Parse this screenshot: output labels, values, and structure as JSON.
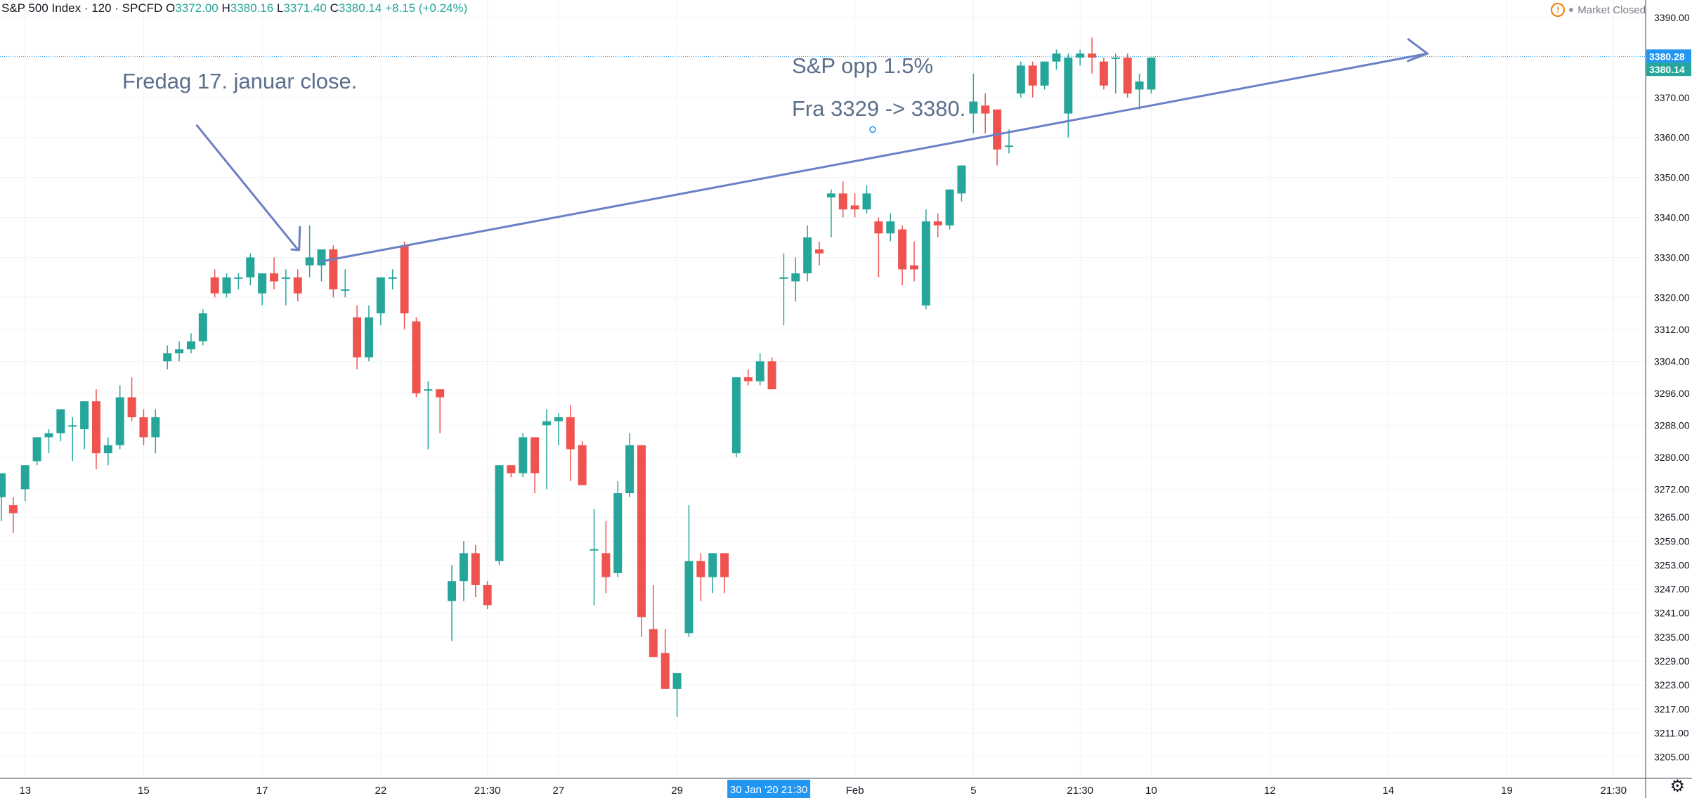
{
  "header": {
    "symbol": "S&P 500 Index · 120 · SPCFD",
    "open_label": "O",
    "open": "3372.00",
    "high_label": "H",
    "high": "3380.16",
    "low_label": "L",
    "low": "3371.40",
    "close_label": "C",
    "close": "3380.14",
    "change": "+8.15 (+0.24%)",
    "market_status": "Market Closed",
    "warning_icon": "warning-icon",
    "status_icon": "dot-icon"
  },
  "annotations": {
    "note1": "Fredag 17. januar close.",
    "note2_line1": "S&P opp 1.5%",
    "note2_line2": "Fra 3329 -> 3380."
  },
  "colors": {
    "up": "#26a69a",
    "down": "#ef5350",
    "annotation": "#6c80c4",
    "price_label_bg": "#2196f3",
    "last_label_bg": "#26a69a",
    "grid": "#f0f3fa"
  },
  "chart_data": {
    "type": "candlestick",
    "symbol": "S&P 500 Index",
    "interval": "120",
    "ylim": [
      3200,
      3393
    ],
    "y_ticks": [
      "3205.00",
      "3211.00",
      "3217.00",
      "3223.00",
      "3229.00",
      "3235.00",
      "3241.00",
      "3247.00",
      "3253.00",
      "3259.00",
      "3265.00",
      "3272.00",
      "3280.00",
      "3288.00",
      "3296.00",
      "3304.00",
      "3312.00",
      "3320.00",
      "3330.00",
      "3340.00",
      "3350.00",
      "3360.00",
      "3370.00",
      "3380.00",
      "3390.00"
    ],
    "x_ticks": [
      {
        "i": 2,
        "label": "13"
      },
      {
        "i": 12,
        "label": "15"
      },
      {
        "i": 22,
        "label": "17"
      },
      {
        "i": 32,
        "label": "22"
      },
      {
        "i": 41,
        "label": "21:30"
      },
      {
        "i": 47,
        "label": "27"
      },
      {
        "i": 57,
        "label": "29"
      },
      {
        "i": 72,
        "label": "Feb"
      },
      {
        "i": 82,
        "label": "5"
      },
      {
        "i": 91,
        "label": "21:30"
      },
      {
        "i": 97,
        "label": "10"
      },
      {
        "i": 107,
        "label": "12"
      },
      {
        "i": 117,
        "label": "14"
      },
      {
        "i": 127,
        "label": "19"
      },
      {
        "i": 136,
        "label": "21:30"
      }
    ],
    "crosshair_label": {
      "i": 64.5,
      "label": "30 Jan '20   21:30"
    },
    "price_lines": [
      {
        "value": 3380.28,
        "label": "3380.28",
        "style": "dotted",
        "color": "#2196f3"
      },
      {
        "value": 3380.14,
        "label": "3380.14",
        "color": "#26a69a"
      }
    ],
    "candles": [
      {
        "o": 3270,
        "h": 3276,
        "l": 3264,
        "c": 3276
      },
      {
        "o": 3268,
        "h": 3270,
        "l": 3261,
        "c": 3266
      },
      {
        "o": 3272,
        "h": 3278,
        "l": 3269,
        "c": 3278
      },
      {
        "o": 3279,
        "h": 3285,
        "l": 3278,
        "c": 3285
      },
      {
        "o": 3285,
        "h": 3287,
        "l": 3281,
        "c": 3286
      },
      {
        "o": 3286,
        "h": 3292,
        "l": 3284,
        "c": 3292
      },
      {
        "o": 3288,
        "h": 3290,
        "l": 3279,
        "c": 3288
      },
      {
        "o": 3287,
        "h": 3294,
        "l": 3282,
        "c": 3294
      },
      {
        "o": 3294,
        "h": 3297,
        "l": 3277,
        "c": 3281
      },
      {
        "o": 3281,
        "h": 3285,
        "l": 3278,
        "c": 3283
      },
      {
        "o": 3283,
        "h": 3298,
        "l": 3282,
        "c": 3295
      },
      {
        "o": 3295,
        "h": 3300,
        "l": 3289,
        "c": 3290
      },
      {
        "o": 3290,
        "h": 3292,
        "l": 3283,
        "c": 3285
      },
      {
        "o": 3285,
        "h": 3292,
        "l": 3281,
        "c": 3290
      },
      {
        "o": 3304,
        "h": 3308,
        "l": 3302,
        "c": 3306
      },
      {
        "o": 3306,
        "h": 3309,
        "l": 3304,
        "c": 3307
      },
      {
        "o": 3307,
        "h": 3311,
        "l": 3306,
        "c": 3309
      },
      {
        "o": 3309,
        "h": 3317,
        "l": 3308,
        "c": 3316
      },
      {
        "o": 3325,
        "h": 3327,
        "l": 3320,
        "c": 3321
      },
      {
        "o": 3321,
        "h": 3326,
        "l": 3320,
        "c": 3325
      },
      {
        "o": 3325,
        "h": 3326,
        "l": 3322,
        "c": 3325
      },
      {
        "o": 3325,
        "h": 3331,
        "l": 3323,
        "c": 3330
      },
      {
        "o": 3321,
        "h": 3326,
        "l": 3318,
        "c": 3326
      },
      {
        "o": 3326,
        "h": 3330,
        "l": 3322,
        "c": 3324
      },
      {
        "o": 3325,
        "h": 3327,
        "l": 3318,
        "c": 3325
      },
      {
        "o": 3325,
        "h": 3327,
        "l": 3319,
        "c": 3321
      },
      {
        "o": 3328,
        "h": 3338,
        "l": 3325,
        "c": 3330
      },
      {
        "o": 3328,
        "h": 3332,
        "l": 3324,
        "c": 3332
      },
      {
        "o": 3332,
        "h": 3333,
        "l": 3320,
        "c": 3322
      },
      {
        "o": 3322,
        "h": 3327,
        "l": 3320,
        "c": 3322
      },
      {
        "o": 3315,
        "h": 3318,
        "l": 3302,
        "c": 3305
      },
      {
        "o": 3305,
        "h": 3318,
        "l": 3304,
        "c": 3315
      },
      {
        "o": 3316,
        "h": 3325,
        "l": 3313,
        "c": 3325
      },
      {
        "o": 3325,
        "h": 3327,
        "l": 3322,
        "c": 3325
      },
      {
        "o": 3333,
        "h": 3334,
        "l": 3312,
        "c": 3316
      },
      {
        "o": 3314,
        "h": 3315,
        "l": 3295,
        "c": 3296
      },
      {
        "o": 3297,
        "h": 3299,
        "l": 3282,
        "c": 3297
      },
      {
        "o": 3297,
        "h": 3297,
        "l": 3286,
        "c": 3295
      },
      {
        "o": 3244,
        "h": 3253,
        "l": 3234,
        "c": 3249
      },
      {
        "o": 3249,
        "h": 3259,
        "l": 3244,
        "c": 3256
      },
      {
        "o": 3256,
        "h": 3258,
        "l": 3245,
        "c": 3248
      },
      {
        "o": 3248,
        "h": 3249,
        "l": 3242,
        "c": 3243
      },
      {
        "o": 3254,
        "h": 3278,
        "l": 3253,
        "c": 3278
      },
      {
        "o": 3278,
        "h": 3278,
        "l": 3275,
        "c": 3276
      },
      {
        "o": 3276,
        "h": 3286,
        "l": 3275,
        "c": 3285
      },
      {
        "o": 3285,
        "h": 3285,
        "l": 3271,
        "c": 3276
      },
      {
        "o": 3288,
        "h": 3292,
        "l": 3272,
        "c": 3289
      },
      {
        "o": 3289,
        "h": 3291,
        "l": 3283,
        "c": 3290
      },
      {
        "o": 3290,
        "h": 3293,
        "l": 3274,
        "c": 3282
      },
      {
        "o": 3283,
        "h": 3284,
        "l": 3273,
        "c": 3273
      },
      {
        "o": 3257,
        "h": 3267,
        "l": 3243,
        "c": 3257
      },
      {
        "o": 3256,
        "h": 3264,
        "l": 3246,
        "c": 3250
      },
      {
        "o": 3251,
        "h": 3274,
        "l": 3250,
        "c": 3271
      },
      {
        "o": 3271,
        "h": 3286,
        "l": 3270,
        "c": 3283
      },
      {
        "o": 3283,
        "h": 3283,
        "l": 3235,
        "c": 3240
      },
      {
        "o": 3237,
        "h": 3248,
        "l": 3230,
        "c": 3230
      },
      {
        "o": 3231,
        "h": 3237,
        "l": 3222,
        "c": 3222
      },
      {
        "o": 3222,
        "h": 3226,
        "l": 3215,
        "c": 3226
      },
      {
        "o": 3236,
        "h": 3268,
        "l": 3235,
        "c": 3254
      },
      {
        "o": 3254,
        "h": 3256,
        "l": 3244,
        "c": 3250
      },
      {
        "o": 3250,
        "h": 3256,
        "l": 3246,
        "c": 3256
      },
      {
        "o": 3256,
        "h": 3256,
        "l": 3246,
        "c": 3250
      },
      {
        "o": 3281,
        "h": 3300,
        "l": 3280,
        "c": 3300
      },
      {
        "o": 3300,
        "h": 3302,
        "l": 3298,
        "c": 3299
      },
      {
        "o": 3299,
        "h": 3306,
        "l": 3298,
        "c": 3304
      },
      {
        "o": 3304,
        "h": 3305,
        "l": 3297,
        "c": 3297
      },
      {
        "o": 3325,
        "h": 3331,
        "l": 3313,
        "c": 3325
      },
      {
        "o": 3324,
        "h": 3330,
        "l": 3319,
        "c": 3326
      },
      {
        "o": 3326,
        "h": 3338,
        "l": 3324,
        "c": 3335
      },
      {
        "o": 3332,
        "h": 3334,
        "l": 3328,
        "c": 3331
      },
      {
        "o": 3345,
        "h": 3347,
        "l": 3335,
        "c": 3346
      },
      {
        "o": 3346,
        "h": 3349,
        "l": 3340,
        "c": 3342
      },
      {
        "o": 3343,
        "h": 3346,
        "l": 3340,
        "c": 3342
      },
      {
        "o": 3342,
        "h": 3348,
        "l": 3341,
        "c": 3346
      },
      {
        "o": 3339,
        "h": 3340,
        "l": 3325,
        "c": 3336
      },
      {
        "o": 3336,
        "h": 3341,
        "l": 3334,
        "c": 3339
      },
      {
        "o": 3337,
        "h": 3338,
        "l": 3323,
        "c": 3327
      },
      {
        "o": 3328,
        "h": 3334,
        "l": 3324,
        "c": 3327
      },
      {
        "o": 3318,
        "h": 3342,
        "l": 3317,
        "c": 3339
      },
      {
        "o": 3339,
        "h": 3341,
        "l": 3335,
        "c": 3338
      },
      {
        "o": 3338,
        "h": 3347,
        "l": 3337,
        "c": 3347
      },
      {
        "o": 3346,
        "h": 3353,
        "l": 3344,
        "c": 3353
      },
      {
        "o": 3366,
        "h": 3376,
        "l": 3361,
        "c": 3369
      },
      {
        "o": 3368,
        "h": 3371,
        "l": 3361,
        "c": 3366
      },
      {
        "o": 3367,
        "h": 3367,
        "l": 3353,
        "c": 3357
      },
      {
        "o": 3358,
        "h": 3362,
        "l": 3356,
        "c": 3358
      },
      {
        "o": 3371,
        "h": 3379,
        "l": 3370,
        "c": 3378
      },
      {
        "o": 3378,
        "h": 3379,
        "l": 3370,
        "c": 3373
      },
      {
        "o": 3373,
        "h": 3379,
        "l": 3372,
        "c": 3379
      },
      {
        "o": 3379,
        "h": 3382,
        "l": 3377,
        "c": 3381
      },
      {
        "o": 3366,
        "h": 3381,
        "l": 3360,
        "c": 3380
      },
      {
        "o": 3380,
        "h": 3382,
        "l": 3378,
        "c": 3381
      },
      {
        "o": 3381,
        "h": 3385,
        "l": 3376,
        "c": 3380
      },
      {
        "o": 3379,
        "h": 3380,
        "l": 3372,
        "c": 3373
      },
      {
        "o": 3380,
        "h": 3381,
        "l": 3371,
        "c": 3380
      },
      {
        "o": 3380,
        "h": 3381,
        "l": 3370,
        "c": 3371
      },
      {
        "o": 3372,
        "h": 3376,
        "l": 3367,
        "c": 3374
      },
      {
        "o": 3372,
        "h": 3380,
        "l": 3371,
        "c": 3380
      }
    ]
  }
}
